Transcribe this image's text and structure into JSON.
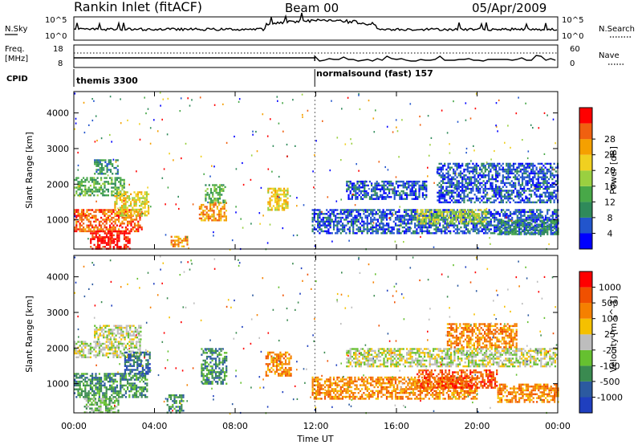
{
  "header": {
    "station": "Rankin Inlet (fitACF)",
    "beam": "Beam 00",
    "date": "05/Apr/2009"
  },
  "noise_panel": {
    "left_label": "N.Sky",
    "right_label": "N.Search",
    "y_ticks_left": [
      "10^5",
      "10^0"
    ],
    "y_ticks_right": [
      "10^5",
      "10^0"
    ]
  },
  "freq_panel": {
    "left_label_top": "Freq.",
    "left_label_bottom": "[MHz]",
    "right_label": "Nave",
    "y_ticks_left": [
      "18",
      "8"
    ],
    "y_ticks_right": [
      "60",
      "0"
    ]
  },
  "cpid": {
    "label": "CPID",
    "modes": [
      {
        "name": "themis 3300",
        "start_hour": 0
      },
      {
        "name": "normalsound (fast) 157",
        "start_hour": 11.95
      }
    ]
  },
  "chart_data": [
    {
      "type": "heatmap",
      "title": "",
      "xlabel": "Time UT",
      "ylabel": "Slant Range [km]",
      "x_ticks": [
        "00:00",
        "04:00",
        "08:00",
        "12:00",
        "16:00",
        "20:00",
        "00:00"
      ],
      "y_ticks": [
        "1000",
        "2000",
        "3000",
        "4000"
      ],
      "xlim": [
        0,
        24
      ],
      "ylim": [
        180,
        4600
      ],
      "colorbar": {
        "label": "Power [dB]",
        "ticks": [
          "4",
          "8",
          "12",
          "16",
          "20",
          "24",
          "28"
        ],
        "colors": [
          "#0000ff",
          "#2255cc",
          "#2f8a5a",
          "#48a848",
          "#9ad040",
          "#f0d020",
          "#f5a000",
          "#f06010",
          "#ff0000"
        ]
      },
      "regions": [
        {
          "t0": 0.0,
          "t1": 2.5,
          "r0": 1700,
          "r1": 2200,
          "level": 3
        },
        {
          "t0": 1.0,
          "t1": 2.2,
          "r0": 2300,
          "r1": 2700,
          "level": 2
        },
        {
          "t0": 0.0,
          "t1": 3.4,
          "r0": 700,
          "r1": 1300,
          "level": 7
        },
        {
          "t0": 2.0,
          "t1": 3.7,
          "r0": 1100,
          "r1": 1800,
          "level": 5
        },
        {
          "t0": 0.8,
          "t1": 2.8,
          "r0": 200,
          "r1": 700,
          "level": 8
        },
        {
          "t0": 4.8,
          "t1": 5.6,
          "r0": 250,
          "r1": 550,
          "level": 6
        },
        {
          "t0": 6.2,
          "t1": 7.6,
          "r0": 1000,
          "r1": 1500,
          "level": 6
        },
        {
          "t0": 6.5,
          "t1": 7.5,
          "r0": 1500,
          "r1": 2000,
          "level": 3
        },
        {
          "t0": 9.6,
          "t1": 10.6,
          "r0": 1300,
          "r1": 1900,
          "level": 5
        },
        {
          "t0": 11.8,
          "t1": 24.0,
          "r0": 600,
          "r1": 1300,
          "level": 1
        },
        {
          "t0": 13.5,
          "t1": 17.5,
          "r0": 1600,
          "r1": 2100,
          "level": 1
        },
        {
          "t0": 18.0,
          "t1": 24.0,
          "r0": 1500,
          "r1": 2600,
          "level": 1
        },
        {
          "t0": 17.0,
          "t1": 20.5,
          "r0": 900,
          "r1": 1300,
          "level": 4
        },
        {
          "t0": 21.0,
          "t1": 24.0,
          "r0": 600,
          "r1": 1000,
          "level": 2
        }
      ]
    },
    {
      "type": "heatmap",
      "title": "",
      "xlabel": "Time UT",
      "ylabel": "Slant Range [km]",
      "x_ticks": [
        "00:00",
        "04:00",
        "08:00",
        "12:00",
        "16:00",
        "20:00",
        "00:00"
      ],
      "y_ticks": [
        "1000",
        "2000",
        "3000",
        "4000"
      ],
      "xlim": [
        0,
        24
      ],
      "ylim": [
        180,
        4600
      ],
      "colorbar": {
        "label": "Velocity [m s^-1]",
        "ticks": [
          "1000",
          "500",
          "100",
          "25",
          "-25",
          "-100",
          "-500",
          "-1000"
        ],
        "colors": [
          "#1f3fbf",
          "#2c5aa0",
          "#3a8a50",
          "#66c030",
          "#bdbdbd",
          "#f5c000",
          "#f58000",
          "#f05000",
          "#ff0000"
        ]
      },
      "regions": [
        {
          "t0": 0.0,
          "t1": 3.3,
          "r0": 1750,
          "r1": 2200,
          "level": 4
        },
        {
          "t0": 1.0,
          "t1": 3.3,
          "r0": 2250,
          "r1": 2650,
          "level": 4
        },
        {
          "t0": 0.0,
          "t1": 3.6,
          "r0": 600,
          "r1": 1300,
          "level": 2
        },
        {
          "t0": 2.5,
          "t1": 3.8,
          "r0": 1300,
          "r1": 1900,
          "level": 1
        },
        {
          "t0": 0.5,
          "t1": 2.2,
          "r0": 200,
          "r1": 600,
          "level": 3
        },
        {
          "t0": 4.6,
          "t1": 5.4,
          "r0": 200,
          "r1": 700,
          "level": 2
        },
        {
          "t0": 6.3,
          "t1": 7.6,
          "r0": 1000,
          "r1": 2000,
          "level": 2
        },
        {
          "t0": 9.5,
          "t1": 10.8,
          "r0": 1200,
          "r1": 1900,
          "level": 6
        },
        {
          "t0": 11.8,
          "t1": 20.0,
          "r0": 600,
          "r1": 1200,
          "level": 6
        },
        {
          "t0": 13.5,
          "t1": 24.0,
          "r0": 1500,
          "r1": 2000,
          "level": 4
        },
        {
          "t0": 18.5,
          "t1": 22.0,
          "r0": 2000,
          "r1": 2700,
          "level": 6
        },
        {
          "t0": 17.0,
          "t1": 21.0,
          "r0": 900,
          "r1": 1400,
          "level": 7
        },
        {
          "t0": 21.0,
          "t1": 24.0,
          "r0": 500,
          "r1": 1000,
          "level": 6
        }
      ]
    }
  ]
}
